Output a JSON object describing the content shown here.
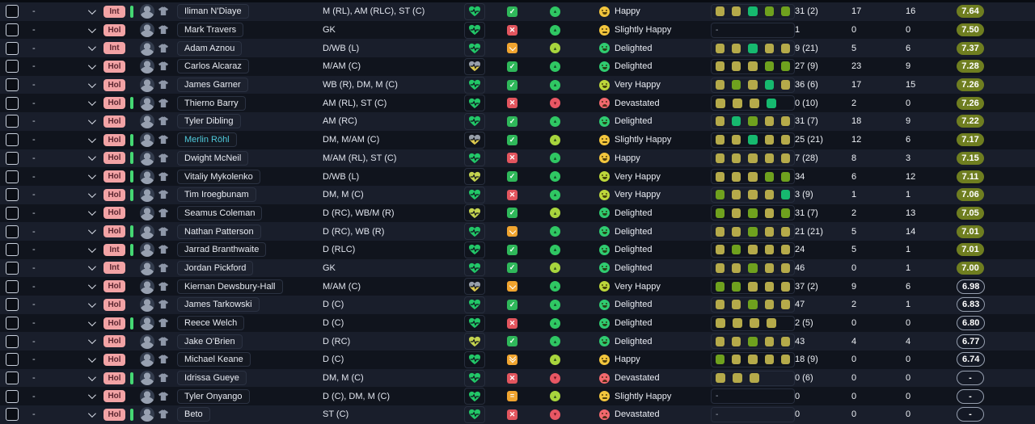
{
  "colors": {
    "badge_bg": "#f2a3a5",
    "link_name": "#4fc9da",
    "rating_good_bg": "#6f7e20",
    "bar_green": "#45d873",
    "form_olive": "#b5aa4a",
    "form_green": "#6fa11e",
    "form_teal": "#16b96f"
  },
  "select_placeholder": "-",
  "morale_tones": {
    "Happy": "yellow",
    "Slightly Happy": "yellow",
    "Very Happy": "lime",
    "Delighted": "green",
    "Devastated": "red"
  },
  "rows": [
    {
      "select": "-",
      "flag": "Int",
      "bar": true,
      "link": false,
      "name": "Iliman N'Diaye",
      "pos": "M (RL), AM (RLC), ST (C)",
      "heart": "green",
      "status": "check",
      "sharp": "green",
      "morale": "Happy",
      "form": [
        "olive",
        "olive",
        "teal",
        "green",
        "green"
      ],
      "apps": "31 (2)",
      "gls": "17",
      "ast": "16",
      "rat": "7.64",
      "rat_style": "good"
    },
    {
      "select": "-",
      "flag": "Hol",
      "bar": false,
      "link": false,
      "name": "Mark Travers",
      "pos": "GK",
      "heart": "green",
      "status": "cross",
      "sharp": "green",
      "morale": "Slightly Happy",
      "form": "-",
      "apps": "1",
      "gls": "0",
      "ast": "0",
      "rat": "7.50",
      "rat_style": "good"
    },
    {
      "select": "-",
      "flag": "Int",
      "bar": false,
      "link": false,
      "name": "Adam Aznou",
      "pos": "D/WB (L)",
      "heart": "green",
      "status": "down",
      "sharp": "lime",
      "morale": "Delighted",
      "form": [
        "olive",
        "olive",
        "teal",
        "olive",
        "olive"
      ],
      "apps": "9 (21)",
      "gls": "5",
      "ast": "6",
      "rat": "7.37",
      "rat_style": "good"
    },
    {
      "select": "-",
      "flag": "Hol",
      "bar": false,
      "link": false,
      "name": "Carlos Alcaraz",
      "pos": "M/AM (C)",
      "heart": "grayyellow",
      "status": "check",
      "sharp": "green",
      "morale": "Delighted",
      "form": [
        "olive",
        "olive",
        "olive",
        "green",
        "green"
      ],
      "apps": "27 (9)",
      "gls": "23",
      "ast": "9",
      "rat": "7.28",
      "rat_style": "good"
    },
    {
      "select": "-",
      "flag": "Hol",
      "bar": false,
      "link": false,
      "name": "James Garner",
      "pos": "WB (R), DM, M (C)",
      "heart": "green",
      "status": "check",
      "sharp": "green",
      "morale": "Very Happy",
      "form": [
        "olive",
        "green",
        "olive",
        "teal",
        "olive"
      ],
      "apps": "36 (6)",
      "gls": "17",
      "ast": "15",
      "rat": "7.26",
      "rat_style": "good"
    },
    {
      "select": "-",
      "flag": "Hol",
      "bar": true,
      "link": false,
      "name": "Thierno Barry",
      "pos": "AM (RL), ST (C)",
      "heart": "green",
      "status": "cross",
      "sharp": "red",
      "morale": "Devastated",
      "form": [
        "olive",
        "olive",
        "olive",
        "teal"
      ],
      "apps": "0 (10)",
      "gls": "2",
      "ast": "0",
      "rat": "7.26",
      "rat_style": "good"
    },
    {
      "select": "-",
      "flag": "Hol",
      "bar": false,
      "link": false,
      "name": "Tyler Dibling",
      "pos": "AM (RC)",
      "heart": "green",
      "status": "check",
      "sharp": "green",
      "morale": "Delighted",
      "form": [
        "olive",
        "teal",
        "green",
        "olive",
        "olive"
      ],
      "apps": "31 (7)",
      "gls": "18",
      "ast": "9",
      "rat": "7.22",
      "rat_style": "good"
    },
    {
      "select": "-",
      "flag": "Hol",
      "bar": true,
      "link": true,
      "name": "Merlin Röhl",
      "pos": "DM, M/AM (C)",
      "heart": "grayyellow",
      "status": "check",
      "sharp": "lime",
      "morale": "Slightly Happy",
      "form": [
        "olive",
        "olive",
        "teal",
        "olive",
        "olive"
      ],
      "apps": "25 (21)",
      "gls": "12",
      "ast": "6",
      "rat": "7.17",
      "rat_style": "good"
    },
    {
      "select": "-",
      "flag": "Hol",
      "bar": true,
      "link": false,
      "name": "Dwight McNeil",
      "pos": "M/AM (RL), ST (C)",
      "heart": "green",
      "status": "cross",
      "sharp": "green",
      "morale": "Happy",
      "form": [
        "olive",
        "olive",
        "olive",
        "olive",
        "olive"
      ],
      "apps": "7 (28)",
      "gls": "8",
      "ast": "3",
      "rat": "7.15",
      "rat_style": "good"
    },
    {
      "select": "-",
      "flag": "Hol",
      "bar": true,
      "link": false,
      "name": "Vitaliy Mykolenko",
      "pos": "D/WB (L)",
      "heart": "yellow",
      "status": "check",
      "sharp": "green",
      "morale": "Very Happy",
      "form": [
        "olive",
        "olive",
        "olive",
        "green",
        "green"
      ],
      "apps": "34",
      "gls": "6",
      "ast": "12",
      "rat": "7.11",
      "rat_style": "good"
    },
    {
      "select": "-",
      "flag": "Hol",
      "bar": true,
      "link": false,
      "name": "Tim Iroegbunam",
      "pos": "DM, M (C)",
      "heart": "green",
      "status": "cross",
      "sharp": "green",
      "morale": "Very Happy",
      "form": [
        "green",
        "olive",
        "olive",
        "olive",
        "teal"
      ],
      "apps": "3 (9)",
      "gls": "1",
      "ast": "1",
      "rat": "7.06",
      "rat_style": "good"
    },
    {
      "select": "-",
      "flag": "Hol",
      "bar": false,
      "link": false,
      "name": "Seamus Coleman",
      "pos": "D (RC), WB/M (R)",
      "heart": "yellow",
      "status": "check",
      "sharp": "lime",
      "morale": "Delighted",
      "form": [
        "green",
        "olive",
        "green",
        "olive",
        "green"
      ],
      "apps": "31 (7)",
      "gls": "2",
      "ast": "13",
      "rat": "7.05",
      "rat_style": "good"
    },
    {
      "select": "-",
      "flag": "Hol",
      "bar": true,
      "link": false,
      "name": "Nathan Patterson",
      "pos": "D (RC), WB (R)",
      "heart": "green",
      "status": "down",
      "sharp": "green",
      "morale": "Delighted",
      "form": [
        "olive",
        "olive",
        "green",
        "olive",
        "olive"
      ],
      "apps": "21 (21)",
      "gls": "5",
      "ast": "14",
      "rat": "7.01",
      "rat_style": "good"
    },
    {
      "select": "-",
      "flag": "Int",
      "bar": true,
      "link": false,
      "name": "Jarrad Branthwaite",
      "pos": "D (RLC)",
      "heart": "green",
      "status": "check",
      "sharp": "green",
      "morale": "Delighted",
      "form": [
        "olive",
        "green",
        "olive",
        "olive",
        "olive"
      ],
      "apps": "24",
      "gls": "5",
      "ast": "1",
      "rat": "7.01",
      "rat_style": "good"
    },
    {
      "select": "-",
      "flag": "Int",
      "bar": false,
      "link": false,
      "name": "Jordan Pickford",
      "pos": "GK",
      "heart": "green",
      "status": "check",
      "sharp": "lime",
      "morale": "Delighted",
      "form": [
        "olive",
        "olive",
        "green",
        "olive",
        "olive"
      ],
      "apps": "46",
      "gls": "0",
      "ast": "1",
      "rat": "7.00",
      "rat_style": "good"
    },
    {
      "select": "-",
      "flag": "Hol",
      "bar": false,
      "link": false,
      "name": "Kiernan Dewsbury-Hall",
      "pos": "M/AM (C)",
      "heart": "grayyellow",
      "status": "down",
      "sharp": "green",
      "morale": "Very Happy",
      "form": [
        "green",
        "green",
        "olive",
        "olive",
        "olive"
      ],
      "apps": "37 (2)",
      "gls": "9",
      "ast": "6",
      "rat": "6.98",
      "rat_style": "poor"
    },
    {
      "select": "-",
      "flag": "Hol",
      "bar": false,
      "link": false,
      "name": "James Tarkowski",
      "pos": "D (C)",
      "heart": "green",
      "status": "check",
      "sharp": "green",
      "morale": "Delighted",
      "form": [
        "olive",
        "olive",
        "green",
        "olive",
        "olive"
      ],
      "apps": "47",
      "gls": "2",
      "ast": "1",
      "rat": "6.83",
      "rat_style": "poor"
    },
    {
      "select": "-",
      "flag": "Hol",
      "bar": true,
      "link": false,
      "name": "Reece Welch",
      "pos": "D (C)",
      "heart": "green",
      "status": "cross",
      "sharp": "green",
      "morale": "Delighted",
      "form": [
        "olive",
        "olive",
        "olive",
        "olive"
      ],
      "apps": "2 (5)",
      "gls": "0",
      "ast": "0",
      "rat": "6.80",
      "rat_style": "poor"
    },
    {
      "select": "-",
      "flag": "Hol",
      "bar": false,
      "link": false,
      "name": "Jake O'Brien",
      "pos": "D (RC)",
      "heart": "yellow",
      "status": "check",
      "sharp": "green",
      "morale": "Delighted",
      "form": [
        "olive",
        "olive",
        "green",
        "olive",
        "olive"
      ],
      "apps": "43",
      "gls": "4",
      "ast": "4",
      "rat": "6.77",
      "rat_style": "poor"
    },
    {
      "select": "-",
      "flag": "Hol",
      "bar": false,
      "link": false,
      "name": "Michael Keane",
      "pos": "D (C)",
      "heart": "green",
      "status": "down2",
      "sharp": "lime",
      "morale": "Happy",
      "form": [
        "green",
        "olive",
        "olive",
        "olive",
        "olive"
      ],
      "apps": "18 (9)",
      "gls": "0",
      "ast": "0",
      "rat": "6.74",
      "rat_style": "poor"
    },
    {
      "select": "-",
      "flag": "Hol",
      "bar": true,
      "link": false,
      "name": "Idrissa Gueye",
      "pos": "DM, M (C)",
      "heart": "green",
      "status": "cross",
      "sharp": "red",
      "morale": "Devastated",
      "form": [
        "olive",
        "olive",
        "olive"
      ],
      "apps": "0 (6)",
      "gls": "0",
      "ast": "0",
      "rat": "-",
      "rat_style": "poor"
    },
    {
      "select": "-",
      "flag": "Hol",
      "bar": false,
      "link": false,
      "name": "Tyler Onyango",
      "pos": "D (C), DM, M (C)",
      "heart": "green",
      "status": "equal",
      "sharp": "lime",
      "morale": "Slightly Happy",
      "form": "-",
      "apps": "0",
      "gls": "0",
      "ast": "0",
      "rat": "-",
      "rat_style": "poor"
    },
    {
      "select": "-",
      "flag": "Hol",
      "bar": true,
      "link": false,
      "name": "Beto",
      "pos": "ST (C)",
      "heart": "green",
      "status": "cross",
      "sharp": "red",
      "morale": "Devastated",
      "form": "-",
      "apps": "0",
      "gls": "0",
      "ast": "0",
      "rat": "-",
      "rat_style": "poor"
    }
  ]
}
